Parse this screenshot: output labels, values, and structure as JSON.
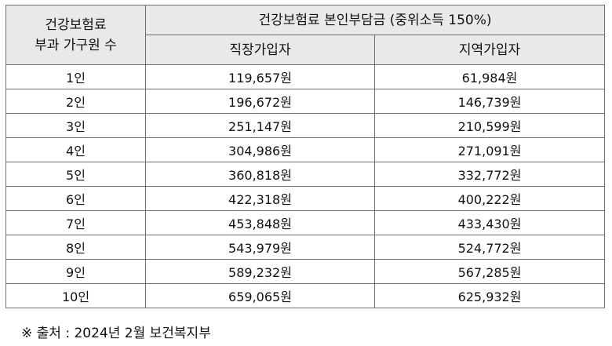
{
  "table": {
    "corner_header": "건강보험료\n부과 가구원 수",
    "group_header": "건강보험료 본인부담금 (중위소득 150%)",
    "col_headers": [
      "직장가입자",
      "지역가입자"
    ],
    "rows": [
      {
        "label": "1인",
        "employee": "119,657원",
        "regional": "61,984원"
      },
      {
        "label": "2인",
        "employee": "196,672원",
        "regional": "146,739원"
      },
      {
        "label": "3인",
        "employee": "251,147원",
        "regional": "210,599원"
      },
      {
        "label": "4인",
        "employee": "304,986원",
        "regional": "271,091원"
      },
      {
        "label": "5인",
        "employee": "360,818원",
        "regional": "332,772원"
      },
      {
        "label": "6인",
        "employee": "422,318원",
        "regional": "400,222원"
      },
      {
        "label": "7인",
        "employee": "453,848원",
        "regional": "433,430원"
      },
      {
        "label": "8인",
        "employee": "543,979원",
        "regional": "524,772원"
      },
      {
        "label": "9인",
        "employee": "589,232원",
        "regional": "567,285원"
      },
      {
        "label": "10인",
        "employee": "659,065원",
        "regional": "625,932원"
      }
    ]
  },
  "source_note": "※ 출처 : 2024년 2월 보건복지부"
}
